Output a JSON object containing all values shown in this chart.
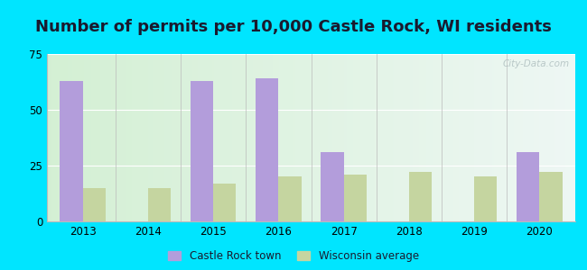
{
  "title": "Number of permits per 10,000 Castle Rock, WI residents",
  "years": [
    2013,
    2014,
    2015,
    2016,
    2017,
    2018,
    2019,
    2020
  ],
  "castle_rock": [
    63,
    0,
    63,
    64,
    31,
    0,
    0,
    31
  ],
  "wisconsin": [
    15,
    15,
    17,
    20,
    21,
    22,
    20,
    22
  ],
  "castle_rock_color": "#b39ddb",
  "wisconsin_color": "#c5d5a0",
  "ylim": [
    0,
    75
  ],
  "yticks": [
    0,
    25,
    50,
    75
  ],
  "bar_width": 0.35,
  "outer_bg": "#00e5ff",
  "title_fontsize": 13,
  "legend_labels": [
    "Castle Rock town",
    "Wisconsin average"
  ],
  "watermark": "City-Data.com",
  "grid_color": "#ffffff",
  "separator_color": "#bbbbbb",
  "tick_fontsize": 8.5
}
